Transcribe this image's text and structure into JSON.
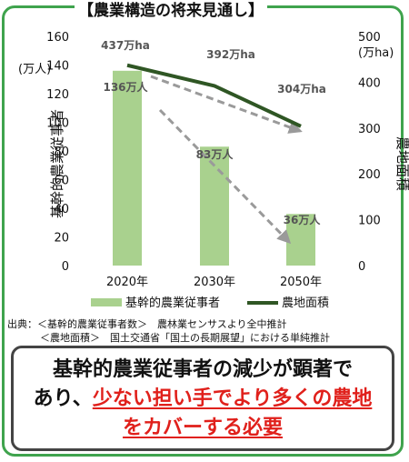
{
  "title": "【農業構造の将来見通し】",
  "chart_data": {
    "type": "bar+line",
    "categories": [
      "2020年",
      "2030年",
      "2050年"
    ],
    "bar_series": {
      "name": "基幹的農業従事者",
      "axis": "left",
      "values": [
        136,
        83,
        36
      ],
      "value_labels": [
        "136万人",
        "83万人",
        "36万人"
      ],
      "color": "#a9d18e"
    },
    "line_series": {
      "name": "農地面積",
      "axis": "right",
      "values": [
        437,
        392,
        304
      ],
      "value_labels": [
        "437万ha",
        "392万ha",
        "304万ha"
      ],
      "color": "#2f5624"
    },
    "left_axis": {
      "label": "基幹的農業従事者",
      "unit": "(万人)",
      "ticks": [
        0,
        20,
        40,
        60,
        80,
        100,
        120,
        140,
        160
      ],
      "ylim": [
        0,
        160
      ]
    },
    "right_axis": {
      "label": "農地面積",
      "unit": "(万ha)",
      "ticks": [
        0,
        100,
        200,
        300,
        400,
        500
      ],
      "ylim": [
        0,
        500
      ]
    },
    "legend": {
      "position": "bottom"
    },
    "grid": false
  },
  "source": {
    "line1": "出典：＜基幹的農業従事者数＞　農林業センサスより全中推計",
    "line2": "＜農地面積＞　国土交通省「国土の長期展望」における単純推計"
  },
  "conclusion": {
    "part1": "基幹的農業従事者の減少が顕著で",
    "part2": "あり、",
    "highlight1": "少ない担い手でより多くの農地",
    "highlight2": "をカバーする必要"
  },
  "colors": {
    "frame": "#3fa34d",
    "bar": "#a9d18e",
    "line": "#2f5624",
    "arrow": "#9a9a9a",
    "highlight": "#e0201b"
  }
}
